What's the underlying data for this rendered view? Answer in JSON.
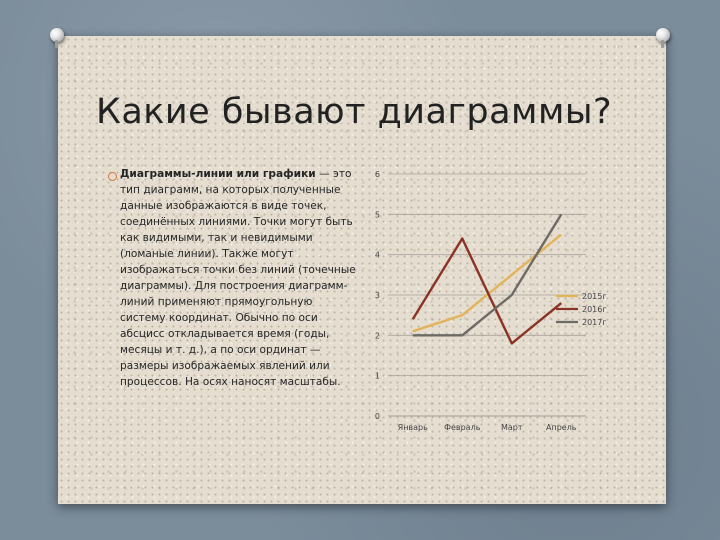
{
  "slide": {
    "title": "Какие бывают диаграммы?",
    "bullet_bold": "Диаграммы-линии или графики",
    "bullet_text": " — это тип диаграмм, на которых полученные данные изображаются в виде точек, соединённых линиями. Точки могут быть как видимыми, так и невидимыми (ломаные линии). Также могут изображаться точки без линий (точечные диаграммы). Для построения диаграмм-линий применяют прямоугольную систему координат. Обычно по оси абсцисс откладывается время (годы, месяцы и т. д.), а по оси ординат — размеры изображаемых явлений или процессов. На осях наносят масштабы.",
    "bullet_color": "#d3783a"
  },
  "chart_data": {
    "type": "line",
    "categories": [
      "Январь",
      "Февраль",
      "Март",
      "Апрель"
    ],
    "series": [
      {
        "name": "2015г",
        "values": [
          2.1,
          2.5,
          3.5,
          4.5
        ],
        "color": "#e3b35a"
      },
      {
        "name": "2016г",
        "values": [
          2.4,
          4.4,
          1.8,
          2.8
        ],
        "color": "#8b3324"
      },
      {
        "name": "2017г",
        "values": [
          2.0,
          2.0,
          3.0,
          5.0
        ],
        "color": "#6e6a64"
      }
    ],
    "ylim": [
      0,
      6
    ],
    "yticks": [
      "0",
      "1",
      "2",
      "3",
      "4",
      "5",
      "6"
    ],
    "grid": true,
    "legend_position": "right"
  }
}
